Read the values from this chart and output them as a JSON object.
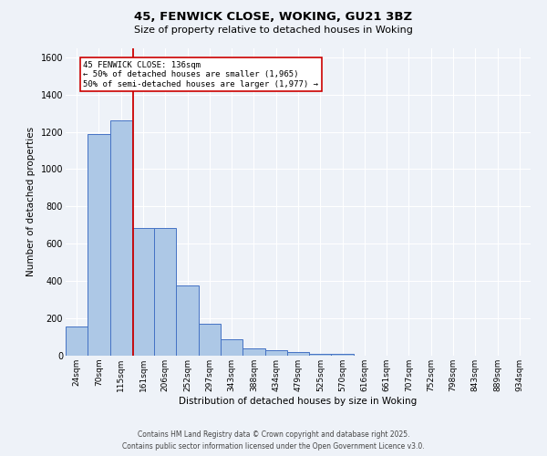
{
  "title_line1": "45, FENWICK CLOSE, WOKING, GU21 3BZ",
  "title_line2": "Size of property relative to detached houses in Woking",
  "xlabel": "Distribution of detached houses by size in Woking",
  "ylabel": "Number of detached properties",
  "bar_labels": [
    "24sqm",
    "70sqm",
    "115sqm",
    "161sqm",
    "206sqm",
    "252sqm",
    "297sqm",
    "343sqm",
    "388sqm",
    "434sqm",
    "479sqm",
    "525sqm",
    "570sqm",
    "616sqm",
    "661sqm",
    "707sqm",
    "752sqm",
    "798sqm",
    "843sqm",
    "889sqm",
    "934sqm"
  ],
  "bar_values": [
    155,
    1190,
    1260,
    685,
    685,
    375,
    170,
    90,
    38,
    30,
    18,
    12,
    8,
    0,
    0,
    0,
    0,
    0,
    0,
    0,
    0
  ],
  "bar_color": "#adc8e6",
  "bar_edgecolor": "#4472c4",
  "background_color": "#eef2f8",
  "grid_color": "#ffffff",
  "vline_x": 2.55,
  "vline_color": "#cc0000",
  "annotation_text": "45 FENWICK CLOSE: 136sqm\n← 50% of detached houses are smaller (1,965)\n50% of semi-detached houses are larger (1,977) →",
  "annotation_box_edgecolor": "#cc0000",
  "annotation_box_facecolor": "#ffffff",
  "ylim": [
    0,
    1650
  ],
  "yticks": [
    0,
    200,
    400,
    600,
    800,
    1000,
    1200,
    1400,
    1600
  ],
  "footer_line1": "Contains HM Land Registry data © Crown copyright and database right 2025.",
  "footer_line2": "Contains public sector information licensed under the Open Government Licence v3.0."
}
